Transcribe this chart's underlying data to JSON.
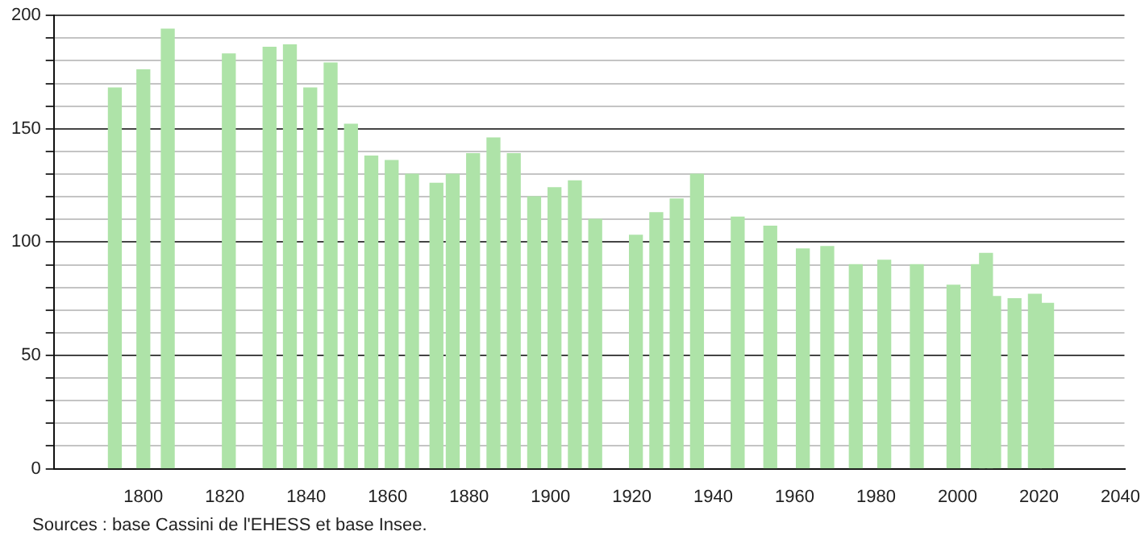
{
  "chart_data": {
    "type": "bar",
    "x": [
      1793,
      1800,
      1806,
      1821,
      1831,
      1836,
      1841,
      1846,
      1851,
      1856,
      1861,
      1866,
      1872,
      1876,
      1881,
      1886,
      1891,
      1896,
      1901,
      1906,
      1911,
      1921,
      1926,
      1931,
      1936,
      1946,
      1954,
      1962,
      1968,
      1975,
      1982,
      1990,
      1999,
      2005,
      2007,
      2009,
      2014,
      2019,
      2022
    ],
    "values": [
      168,
      176,
      194,
      183,
      186,
      187,
      168,
      179,
      152,
      138,
      136,
      130,
      126,
      130,
      139,
      146,
      139,
      120,
      124,
      127,
      110,
      103,
      113,
      119,
      130,
      111,
      107,
      97,
      98,
      90,
      92,
      90,
      81,
      90,
      95,
      76,
      75,
      77,
      73
    ],
    "color": "#aee3a8",
    "xlim": [
      1778,
      2041
    ],
    "xticks": [
      1800,
      1820,
      1840,
      1860,
      1880,
      1900,
      1920,
      1940,
      1960,
      1980,
      2000,
      2020,
      2040
    ],
    "ylim": [
      0,
      200
    ],
    "yticks": [
      0,
      {
        "value": 10,
        "label": null
      },
      {
        "value": 20,
        "label": null
      },
      {
        "value": 30,
        "label": null
      },
      {
        "value": 40,
        "label": null
      },
      50,
      {
        "value": 60,
        "label": null
      },
      {
        "value": 70,
        "label": null
      },
      {
        "value": 80,
        "label": null
      },
      {
        "value": 90,
        "label": null
      },
      100,
      {
        "value": 110,
        "label": null
      },
      {
        "value": 120,
        "label": null
      },
      {
        "value": 130,
        "label": null
      },
      {
        "value": 140,
        "label": null
      },
      150,
      {
        "value": 160,
        "label": null
      },
      {
        "value": 170,
        "label": null
      },
      {
        "value": 180,
        "label": null
      },
      {
        "value": 190,
        "label": null
      },
      200
    ],
    "grid": "y",
    "legend": false,
    "annotations": [
      "Sources : base Cassini de l'EHESS et base Insee."
    ]
  }
}
